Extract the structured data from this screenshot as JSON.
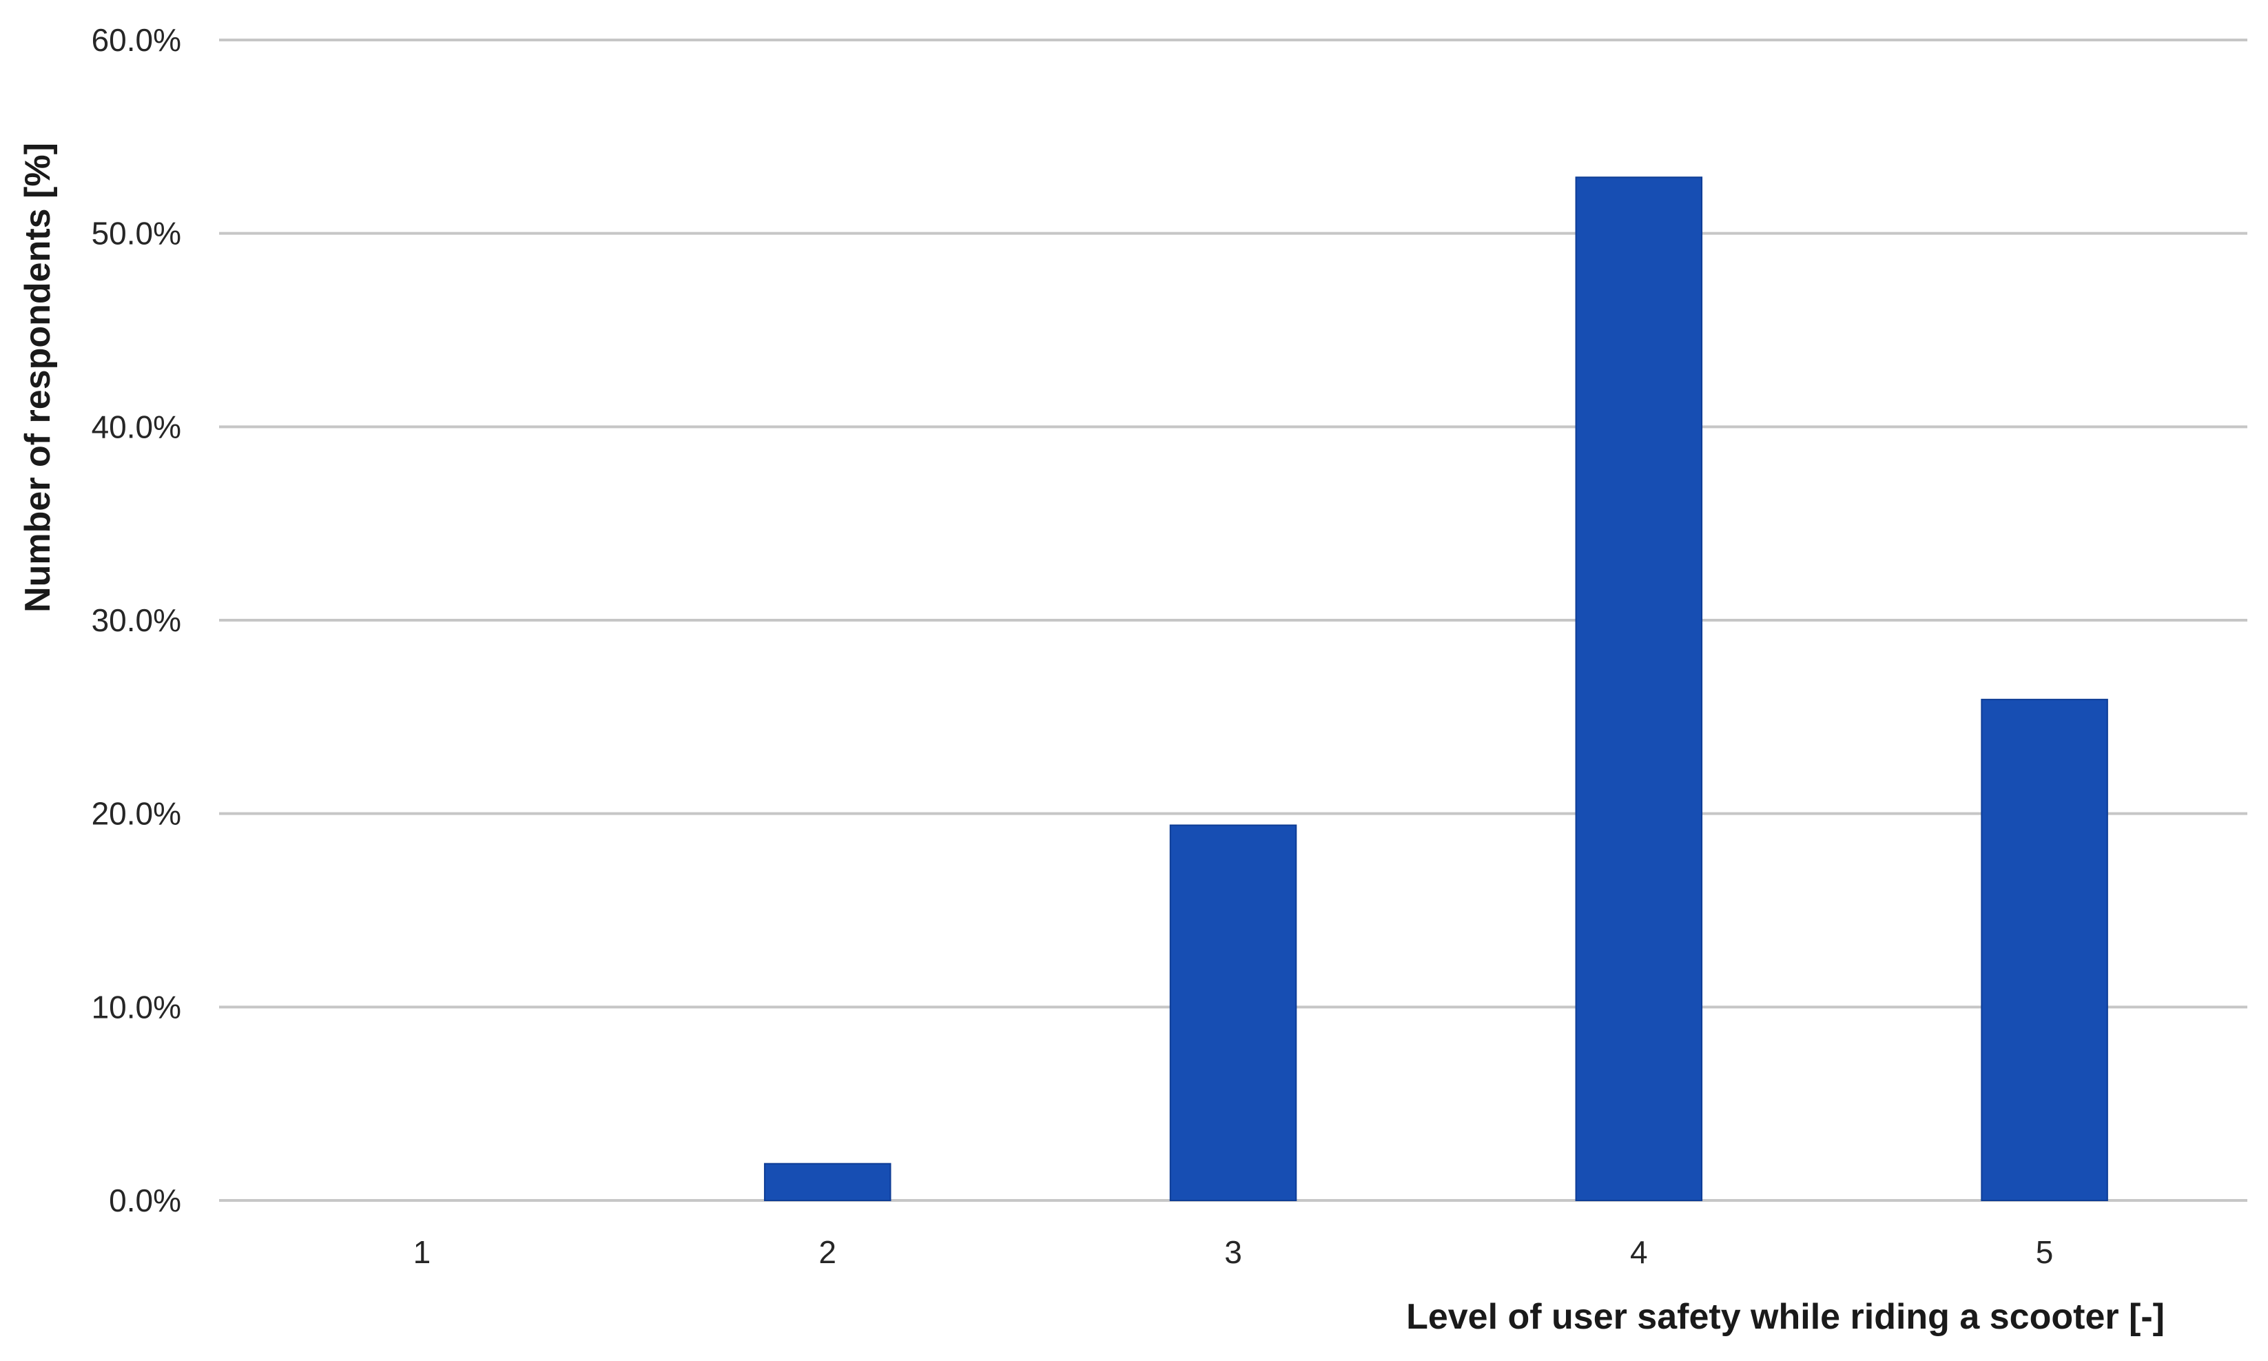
{
  "chart_data": {
    "type": "bar",
    "categories": [
      "1",
      "2",
      "3",
      "4",
      "5"
    ],
    "values": [
      0.0,
      1.9,
      19.4,
      52.9,
      25.9
    ],
    "xlabel": "Level of user safety while riding a scooter [-]",
    "ylabel": "Number of respondents [%]",
    "ylim": [
      0,
      60
    ],
    "yticks": [
      "0.0%",
      "10.0%",
      "20.0%",
      "30.0%",
      "40.0%",
      "50.0%",
      "60.0%"
    ],
    "grid": true,
    "legend": "none",
    "bar_color": "#174EB3",
    "grid_color": "#C6C6C6"
  }
}
